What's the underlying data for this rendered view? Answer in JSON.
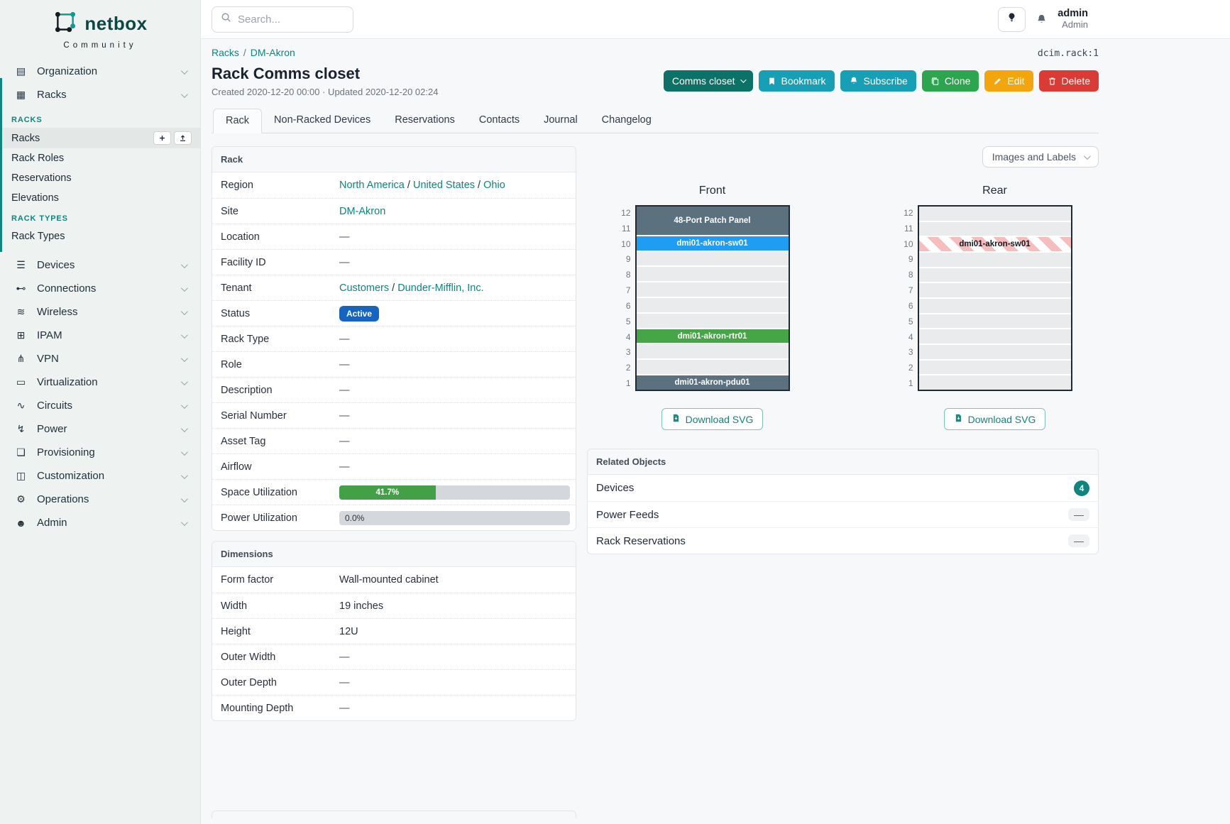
{
  "colors": {
    "accent": "#0e857d",
    "status_active_bg": "#1565c0",
    "progress_fill": "#43a047",
    "progress_track": "#d4d8dc",
    "device_slate": "#5c7180",
    "device_blue": "#1e9df3",
    "device_green": "#46a546",
    "stripe_pink": "#f7bcbc",
    "empty_unit": "#e9ebed",
    "btn_teal_dark": "#0c7268",
    "btn_cyan": "#17a0b5",
    "btn_green": "#2da44e",
    "btn_orange": "#f2a50c",
    "btn_red": "#da3b34",
    "badge_teal": "#0e857d"
  },
  "glyphs": {
    "dash": "—",
    "breadcrumb_sep": "/"
  },
  "brand": {
    "name": "netbox",
    "tagline": "Community"
  },
  "topbar": {
    "search_placeholder": "Search...",
    "user_name": "admin",
    "user_role": "Admin"
  },
  "sidebar": {
    "groups": [
      {
        "label": "Organization",
        "icon": "building-icon"
      },
      {
        "label": "Racks",
        "icon": "rack-icon",
        "expanded": true,
        "sections": [
          {
            "heading": "RACKS",
            "items": [
              {
                "label": "Racks",
                "active": true,
                "buttons": [
                  {
                    "icon": "plus-icon"
                  },
                  {
                    "icon": "upload-icon"
                  }
                ]
              },
              {
                "label": "Rack Roles"
              },
              {
                "label": "Reservations"
              },
              {
                "label": "Elevations"
              }
            ]
          },
          {
            "heading": "RACK TYPES",
            "items": [
              {
                "label": "Rack Types"
              }
            ]
          }
        ]
      },
      {
        "label": "Devices",
        "icon": "devices-icon"
      },
      {
        "label": "Connections",
        "icon": "plug-icon"
      },
      {
        "label": "Wireless",
        "icon": "wifi-icon"
      },
      {
        "label": "IPAM",
        "icon": "ipam-icon"
      },
      {
        "label": "VPN",
        "icon": "vpn-icon"
      },
      {
        "label": "Virtualization",
        "icon": "vm-icon"
      },
      {
        "label": "Circuits",
        "icon": "circuits-icon"
      },
      {
        "label": "Power",
        "icon": "power-icon"
      },
      {
        "label": "Provisioning",
        "icon": "provisioning-icon"
      },
      {
        "label": "Customization",
        "icon": "customization-icon"
      },
      {
        "label": "Operations",
        "icon": "operations-icon"
      },
      {
        "label": "Admin",
        "icon": "admin-icon"
      }
    ]
  },
  "page": {
    "breadcrumb": [
      "Racks",
      "DM-Akron"
    ],
    "object_id": "dcim.rack:1",
    "title": "Rack Comms closet",
    "meta": "Created 2020-12-20 00:00 · Updated 2020-12-20 02:24",
    "actions": [
      {
        "label": "Comms closet",
        "color": "teal_dark",
        "caret": true
      },
      {
        "label": "Bookmark",
        "color": "cyan",
        "icon": "bookmark-icon"
      },
      {
        "label": "Subscribe",
        "color": "cyan",
        "icon": "bell-plus-icon"
      },
      {
        "label": "Clone",
        "color": "green",
        "icon": "copy-icon"
      },
      {
        "label": "Edit",
        "color": "orange",
        "icon": "pencil-icon"
      },
      {
        "label": "Delete",
        "color": "red",
        "icon": "trash-icon"
      }
    ],
    "tabs": [
      {
        "label": "Rack",
        "active": true
      },
      {
        "label": "Non-Racked Devices"
      },
      {
        "label": "Reservations"
      },
      {
        "label": "Contacts"
      },
      {
        "label": "Journal"
      },
      {
        "label": "Changelog"
      }
    ]
  },
  "rack_panel": {
    "title": "Rack",
    "rows": [
      {
        "label": "Region",
        "type": "links",
        "parts": [
          {
            "text": "North America",
            "link": true
          },
          {
            "text": " / "
          },
          {
            "text": "United States",
            "link": true
          },
          {
            "text": " / "
          },
          {
            "text": "Ohio",
            "link": true
          }
        ]
      },
      {
        "label": "Site",
        "type": "links",
        "parts": [
          {
            "text": "DM-Akron",
            "link": true
          }
        ]
      },
      {
        "label": "Location",
        "type": "dash"
      },
      {
        "label": "Facility ID",
        "type": "dash"
      },
      {
        "label": "Tenant",
        "type": "links",
        "parts": [
          {
            "text": "Customers",
            "link": true
          },
          {
            "text": " / "
          },
          {
            "text": "Dunder-Mifflin, Inc.",
            "link": true
          }
        ]
      },
      {
        "label": "Status",
        "type": "badge",
        "value": "Active"
      },
      {
        "label": "Rack Type",
        "type": "dash"
      },
      {
        "label": "Role",
        "type": "dash"
      },
      {
        "label": "Description",
        "type": "dash"
      },
      {
        "label": "Serial Number",
        "type": "dash"
      },
      {
        "label": "Asset Tag",
        "type": "dash"
      },
      {
        "label": "Airflow",
        "type": "dash"
      },
      {
        "label": "Space Utilization",
        "type": "progress",
        "percent": 41.7,
        "text": "41.7%"
      },
      {
        "label": "Power Utilization",
        "type": "progress",
        "percent": 0,
        "text": "0.0%"
      }
    ]
  },
  "dimensions_panel": {
    "title": "Dimensions",
    "rows": [
      {
        "label": "Form factor",
        "value": "Wall-mounted cabinet"
      },
      {
        "label": "Width",
        "value": "19 inches"
      },
      {
        "label": "Height",
        "value": "12U"
      },
      {
        "label": "Outer Width",
        "type": "dash"
      },
      {
        "label": "Outer Depth",
        "type": "dash"
      },
      {
        "label": "Mounting Depth",
        "type": "dash"
      }
    ]
  },
  "elevations": {
    "view_selector": "Images and Labels",
    "download_label": "Download SVG",
    "units": [
      12,
      11,
      10,
      9,
      8,
      7,
      6,
      5,
      4,
      3,
      2,
      1
    ],
    "front": {
      "title": "Front",
      "slots": [
        {
          "span": 2,
          "type": "device",
          "label": "48-Port Patch Panel",
          "color": "slate"
        },
        {
          "span": 1,
          "type": "device",
          "label": "dmi01-akron-sw01",
          "color": "blue"
        },
        {
          "span": 1,
          "type": "empty"
        },
        {
          "span": 1,
          "type": "empty"
        },
        {
          "span": 1,
          "type": "empty"
        },
        {
          "span": 1,
          "type": "empty"
        },
        {
          "span": 1,
          "type": "empty"
        },
        {
          "span": 1,
          "type": "device",
          "label": "dmi01-akron-rtr01",
          "color": "green"
        },
        {
          "span": 1,
          "type": "empty"
        },
        {
          "span": 1,
          "type": "empty"
        },
        {
          "span": 1,
          "type": "device",
          "label": "dmi01-akron-pdu01",
          "color": "slate"
        }
      ]
    },
    "rear": {
      "title": "Rear",
      "slots": [
        {
          "span": 1,
          "type": "empty"
        },
        {
          "span": 1,
          "type": "empty"
        },
        {
          "span": 1,
          "type": "device",
          "label": "dmi01-akron-sw01",
          "color": "striped"
        },
        {
          "span": 1,
          "type": "empty"
        },
        {
          "span": 1,
          "type": "empty"
        },
        {
          "span": 1,
          "type": "empty"
        },
        {
          "span": 1,
          "type": "empty"
        },
        {
          "span": 1,
          "type": "empty"
        },
        {
          "span": 1,
          "type": "empty"
        },
        {
          "span": 1,
          "type": "empty"
        },
        {
          "span": 1,
          "type": "empty"
        },
        {
          "span": 1,
          "type": "empty"
        }
      ]
    }
  },
  "related_objects": {
    "title": "Related Objects",
    "rows": [
      {
        "label": "Devices",
        "count": "4"
      },
      {
        "label": "Power Feeds",
        "empty": true
      },
      {
        "label": "Rack Reservations",
        "empty": true
      }
    ]
  }
}
